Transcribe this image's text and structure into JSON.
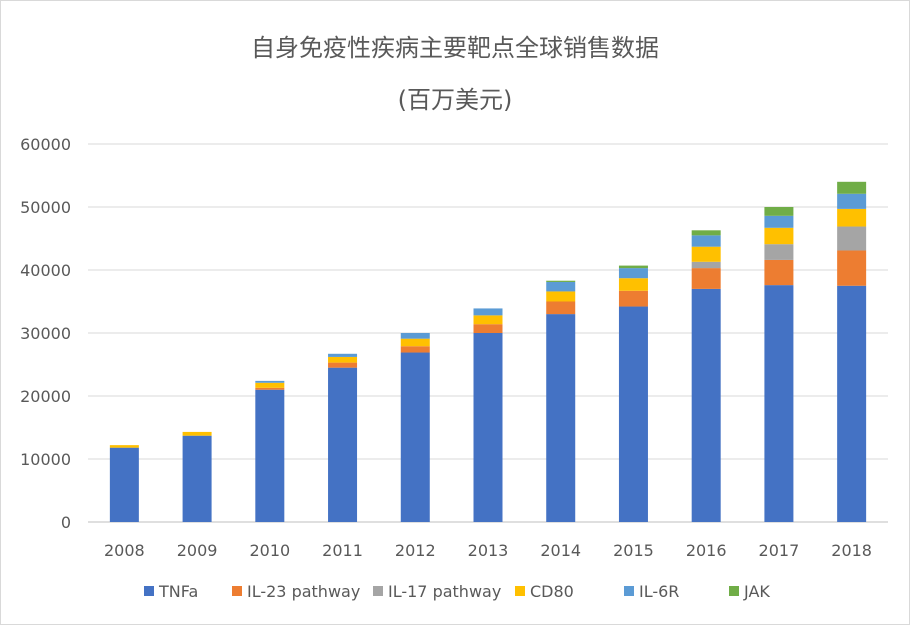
{
  "chart_data": {
    "type": "bar",
    "stacked": true,
    "title": "自身免疫性疾病主要靶点全球销售数据",
    "subtitle": "(百万美元)",
    "categories": [
      "2008",
      "2009",
      "2010",
      "2011",
      "2012",
      "2013",
      "2014",
      "2015",
      "2016",
      "2017",
      "2018"
    ],
    "series": [
      {
        "name": "TNFa",
        "color": "#4472c4",
        "values": [
          11800,
          13700,
          21000,
          24500,
          26900,
          30000,
          33000,
          34200,
          37000,
          37600,
          37500
        ]
      },
      {
        "name": "IL-23 pathway",
        "color": "#ed7d31",
        "values": [
          0,
          0,
          300,
          800,
          1000,
          1400,
          2000,
          2500,
          3300,
          4000,
          5600
        ]
      },
      {
        "name": "IL-17 pathway",
        "color": "#a5a5a5",
        "values": [
          0,
          0,
          0,
          0,
          0,
          0,
          0,
          0,
          1000,
          2500,
          3800
        ]
      },
      {
        "name": "CD80",
        "color": "#ffc000",
        "values": [
          400,
          600,
          800,
          900,
          1200,
          1400,
          1600,
          2000,
          2400,
          2600,
          2800
        ]
      },
      {
        "name": "IL-6R",
        "color": "#5b9bd5",
        "values": [
          0,
          0,
          300,
          500,
          900,
          1100,
          1500,
          1600,
          1800,
          1900,
          2400
        ]
      },
      {
        "name": "JAK",
        "color": "#70ad47",
        "values": [
          0,
          0,
          0,
          0,
          0,
          0,
          200,
          400,
          800,
          1400,
          1900
        ]
      }
    ],
    "ylim": [
      0,
      60000
    ],
    "yticks": [
      0,
      10000,
      20000,
      30000,
      40000,
      50000,
      60000
    ],
    "grid": true,
    "legend_position": "bottom"
  }
}
